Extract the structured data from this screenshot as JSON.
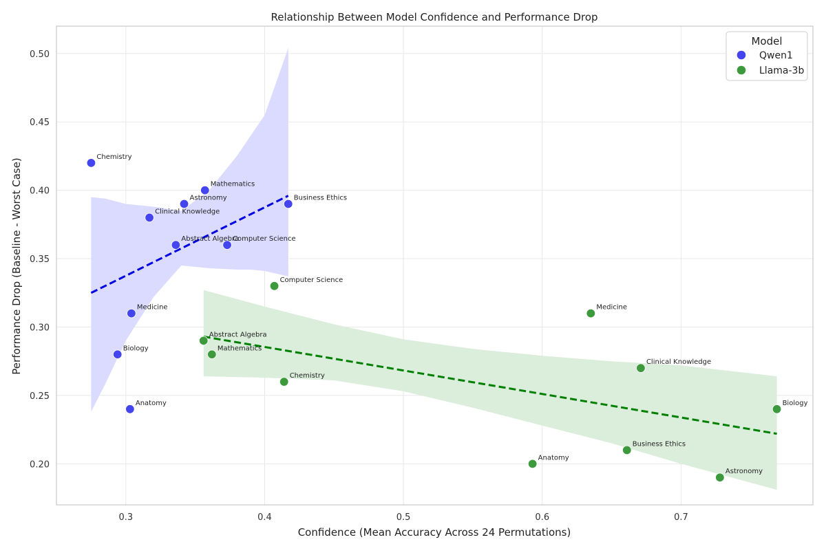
{
  "chart_data": {
    "type": "scatter",
    "title": "Relationship Between Model Confidence and Performance Drop",
    "xlabel": "Confidence (Mean Accuracy Across 24 Permutations)",
    "ylabel": "Performance Drop (Baseline - Worst Case)",
    "xlim": [
      0.25,
      0.795
    ],
    "ylim": [
      0.17,
      0.52
    ],
    "xticks": [
      "0.3",
      "0.4",
      "0.5",
      "0.6",
      "0.7"
    ],
    "xtick_values": [
      0.3,
      0.4,
      0.5,
      0.6,
      0.7
    ],
    "yticks": [
      "0.20",
      "0.25",
      "0.30",
      "0.35",
      "0.40",
      "0.45",
      "0.50"
    ],
    "ytick_values": [
      0.2,
      0.25,
      0.3,
      0.35,
      0.4,
      0.45,
      0.5
    ],
    "grid": true,
    "legend": {
      "title": "Model",
      "position": "top-right"
    },
    "series": [
      {
        "name": "Qwen1",
        "color": "#4545f0",
        "line_color": "#0000e0",
        "band_color": "#d9d9ff",
        "points": [
          {
            "label": "Chemistry",
            "x": 0.275,
            "y": 0.42
          },
          {
            "label": "Mathematics",
            "x": 0.357,
            "y": 0.4
          },
          {
            "label": "Astronomy",
            "x": 0.342,
            "y": 0.39
          },
          {
            "label": "Business Ethics",
            "x": 0.417,
            "y": 0.39
          },
          {
            "label": "Clinical Knowledge",
            "x": 0.317,
            "y": 0.38
          },
          {
            "label": "Abstract Algebra",
            "x": 0.336,
            "y": 0.36
          },
          {
            "label": "Computer Science",
            "x": 0.373,
            "y": 0.36
          },
          {
            "label": "Medicine",
            "x": 0.304,
            "y": 0.31
          },
          {
            "label": "Biology",
            "x": 0.294,
            "y": 0.28
          },
          {
            "label": "Anatomy",
            "x": 0.303,
            "y": 0.24
          }
        ],
        "trend": {
          "x": [
            0.275,
            0.417
          ],
          "y": [
            0.325,
            0.396
          ]
        },
        "band": {
          "x": [
            0.275,
            0.285,
            0.3,
            0.32,
            0.34,
            0.36,
            0.38,
            0.39,
            0.4,
            0.417
          ],
          "upper": [
            0.395,
            0.394,
            0.39,
            0.388,
            0.385,
            0.4,
            0.425,
            0.44,
            0.455,
            0.504
          ],
          "lower": [
            0.238,
            0.258,
            0.29,
            0.322,
            0.345,
            0.343,
            0.342,
            0.342,
            0.341,
            0.337
          ]
        }
      },
      {
        "name": "Llama-3b",
        "color": "#3c9a3c",
        "line_color": "#008000",
        "band_color": "#d9ecd9",
        "points": [
          {
            "label": "Computer Science",
            "x": 0.407,
            "y": 0.33
          },
          {
            "label": "Medicine",
            "x": 0.635,
            "y": 0.31
          },
          {
            "label": "Abstract Algebra",
            "x": 0.356,
            "y": 0.29
          },
          {
            "label": "Mathematics",
            "x": 0.362,
            "y": 0.28
          },
          {
            "label": "Clinical Knowledge",
            "x": 0.671,
            "y": 0.27
          },
          {
            "label": "Chemistry",
            "x": 0.414,
            "y": 0.26
          },
          {
            "label": "Biology",
            "x": 0.769,
            "y": 0.24
          },
          {
            "label": "Business Ethics",
            "x": 0.661,
            "y": 0.21
          },
          {
            "label": "Anatomy",
            "x": 0.593,
            "y": 0.2
          },
          {
            "label": "Astronomy",
            "x": 0.728,
            "y": 0.19
          }
        ],
        "trend": {
          "x": [
            0.356,
            0.769
          ],
          "y": [
            0.293,
            0.222
          ]
        },
        "band": {
          "x": [
            0.356,
            0.4,
            0.45,
            0.5,
            0.55,
            0.6,
            0.65,
            0.7,
            0.769
          ],
          "upper": [
            0.327,
            0.315,
            0.302,
            0.291,
            0.284,
            0.279,
            0.275,
            0.272,
            0.264
          ],
          "lower": [
            0.264,
            0.263,
            0.261,
            0.253,
            0.241,
            0.228,
            0.215,
            0.2,
            0.181
          ]
        }
      }
    ]
  }
}
